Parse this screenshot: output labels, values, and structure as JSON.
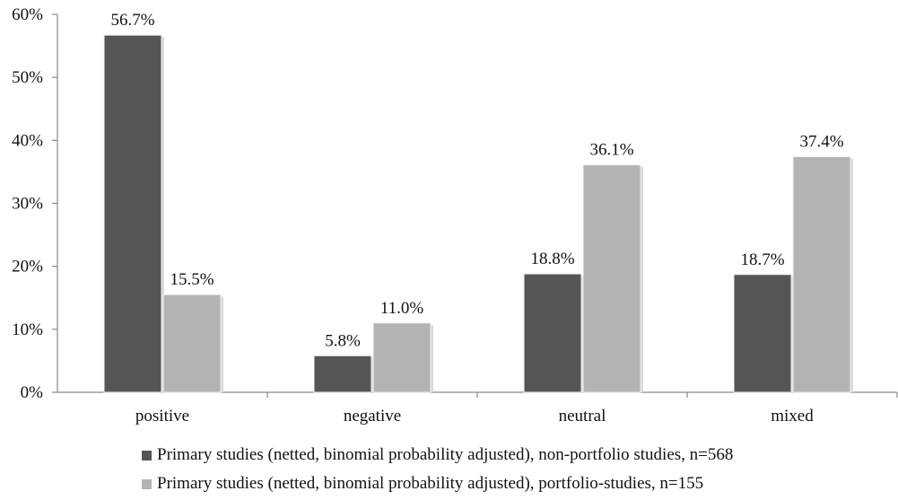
{
  "chart_data": {
    "type": "bar",
    "title": "",
    "xlabel": "",
    "ylabel": "",
    "ylim": [
      0,
      60
    ],
    "yticks": [
      0,
      10,
      20,
      30,
      40,
      50,
      60
    ],
    "ytick_labels": [
      "0%",
      "10%",
      "20%",
      "30%",
      "40%",
      "50%",
      "60%"
    ],
    "grid": false,
    "legend_position": "bottom",
    "categories": [
      "positive",
      "negative",
      "neutral",
      "mixed"
    ],
    "series": [
      {
        "name": "Primary studies (netted, binomial probability adjusted), non-portfolio studies, n=568",
        "values": [
          56.7,
          5.8,
          18.8,
          18.7
        ],
        "labels": [
          "56.7%",
          "5.8%",
          "18.8%",
          "18.7%"
        ],
        "color": "#555555"
      },
      {
        "name": "Primary studies (netted, binomial probability adjusted), portfolio-studies, n=155",
        "values": [
          15.5,
          11.0,
          36.1,
          37.4
        ],
        "labels": [
          "15.5%",
          "11.0%",
          "36.1%",
          "37.4%"
        ],
        "color": "#b3b3b3"
      }
    ]
  }
}
